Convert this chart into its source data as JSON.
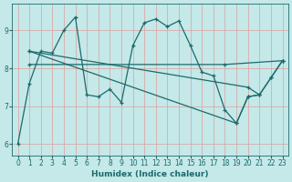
{
  "xlabel": "Humidex (Indice chaleur)",
  "bg_color": "#c5e8e8",
  "line_color": "#1a6b6b",
  "grid_color": "#dda0a0",
  "xlim": [
    -0.5,
    23.5
  ],
  "ylim": [
    5.7,
    9.7
  ],
  "xticks": [
    0,
    1,
    2,
    3,
    4,
    5,
    6,
    7,
    8,
    9,
    10,
    11,
    12,
    13,
    14,
    15,
    16,
    17,
    18,
    19,
    20,
    21,
    22,
    23
  ],
  "yticks": [
    6,
    7,
    8,
    9
  ],
  "line_main": {
    "x": [
      0,
      1,
      2,
      3,
      4,
      5,
      6,
      7,
      8,
      9,
      10,
      11,
      12,
      13,
      14,
      15,
      16,
      17,
      18,
      19,
      20,
      21,
      22,
      23
    ],
    "y": [
      6.0,
      7.6,
      8.45,
      8.4,
      9.0,
      9.35,
      7.3,
      7.25,
      7.45,
      7.1,
      8.6,
      9.2,
      9.3,
      9.1,
      9.25,
      8.6,
      7.9,
      7.8,
      6.9,
      6.55,
      7.25,
      7.3,
      7.75,
      8.2
    ]
  },
  "line_flat": {
    "x": [
      1,
      18,
      23
    ],
    "y": [
      8.1,
      8.1,
      8.2
    ]
  },
  "line_gentle": {
    "x": [
      1,
      20,
      21,
      22,
      23
    ],
    "y": [
      8.45,
      7.5,
      7.3,
      7.75,
      8.2
    ]
  },
  "line_steep": {
    "x": [
      1,
      19,
      20,
      21
    ],
    "y": [
      8.45,
      6.55,
      7.25,
      7.3
    ]
  }
}
